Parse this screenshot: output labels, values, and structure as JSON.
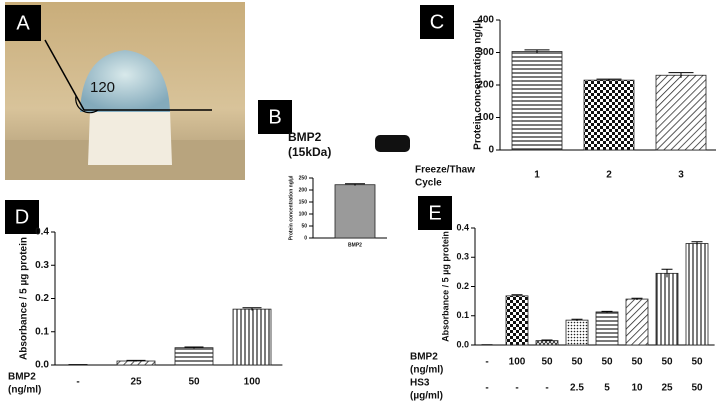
{
  "photo": {
    "panel_label": "A",
    "angle_label": "120"
  },
  "chart_data": [
    {
      "type": "bar",
      "panel_label": "C",
      "ylabel": "Protein concentration ng/µl",
      "category_rows": [
        {
          "label": [
            "Freeze/Thaw",
            "Cycle"
          ],
          "values": [
            "1",
            "2",
            "3"
          ]
        }
      ],
      "values": [
        303,
        215,
        230
      ],
      "errors": [
        5,
        3,
        8
      ],
      "patterns": [
        "horizontal",
        "checker",
        "diagonal"
      ],
      "ylim": [
        0,
        400
      ],
      "yticks": [
        0,
        100,
        200,
        300,
        400
      ]
    },
    {
      "type": "bar",
      "panel_label": "B",
      "title": [
        "BMP2",
        "(15kDa)"
      ],
      "ylabel": "Protein concentration ng/µl",
      "category_rows": [
        {
          "values": [
            "BMP2"
          ]
        }
      ],
      "values": [
        222
      ],
      "errors": [
        4
      ],
      "patterns": [
        "gray"
      ],
      "ylim": [
        0,
        250
      ],
      "yticks": [
        0,
        50,
        100,
        150,
        200,
        250
      ]
    },
    {
      "type": "bar",
      "panel_label": "D",
      "ylabel": "Absorbance / 5 µg protein",
      "category_rows": [
        {
          "label": [
            "BMP2",
            "(ng/ml)"
          ],
          "values": [
            "-",
            "25",
            "50",
            "100"
          ]
        }
      ],
      "values": [
        0,
        0.012,
        0.052,
        0.168
      ],
      "errors": [
        0.001,
        0.002,
        0.002,
        0.004
      ],
      "patterns": [
        "none",
        "diagonal",
        "horizontal",
        "vertical"
      ],
      "ylim": [
        0,
        0.4
      ],
      "yticks": [
        {
          "value": 0,
          "label": "0.0"
        },
        0.1,
        0.2,
        0.3,
        0.4
      ]
    },
    {
      "type": "bar",
      "panel_label": "E",
      "ylabel": "Absorbance / 5 µg protein",
      "category_rows": [
        {
          "label": [
            "BMP2",
            "(ng/ml)"
          ],
          "values": [
            "-",
            "100",
            "50",
            "50",
            "50",
            "50",
            "50",
            "50"
          ]
        },
        {
          "label": [
            "HS3",
            "(µg/ml)"
          ],
          "values": [
            "-",
            "-",
            "-",
            "2.5",
            "5",
            "10",
            "25",
            "50"
          ]
        }
      ],
      "values": [
        0,
        0.168,
        0.015,
        0.085,
        0.113,
        0.157,
        0.245,
        0.347
      ],
      "errors": [
        0.001,
        0.004,
        0.002,
        0.003,
        0.002,
        0.003,
        0.014,
        0.006
      ],
      "patterns": [
        "none",
        "checker",
        "crosshatch",
        "dots",
        "horizontal",
        "diagonal",
        "vertical",
        "vertical"
      ],
      "ylim": [
        0,
        0.4
      ],
      "yticks": [
        {
          "value": 0,
          "label": "0.0"
        },
        0.1,
        0.2,
        0.3,
        0.4
      ]
    }
  ]
}
